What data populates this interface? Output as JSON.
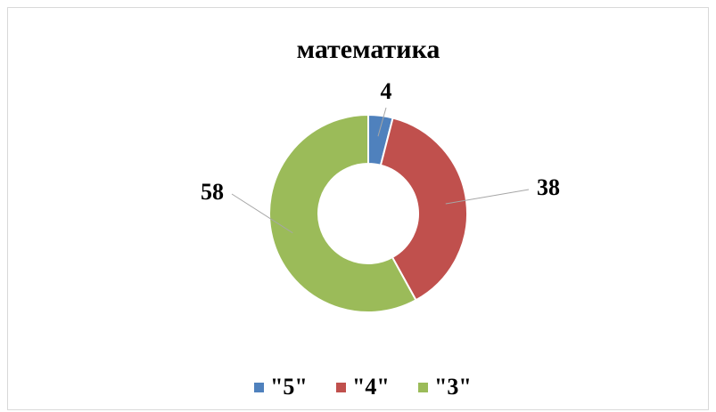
{
  "chart_data": {
    "type": "donut",
    "title": "математика",
    "categories": [
      "\"5\"",
      "\"4\"",
      "\"3\""
    ],
    "series": [
      {
        "values": [
          4,
          38,
          58
        ],
        "colors": [
          "#4f81bd",
          "#c0504d",
          "#9bbb59"
        ]
      }
    ],
    "legend": "bottom"
  }
}
